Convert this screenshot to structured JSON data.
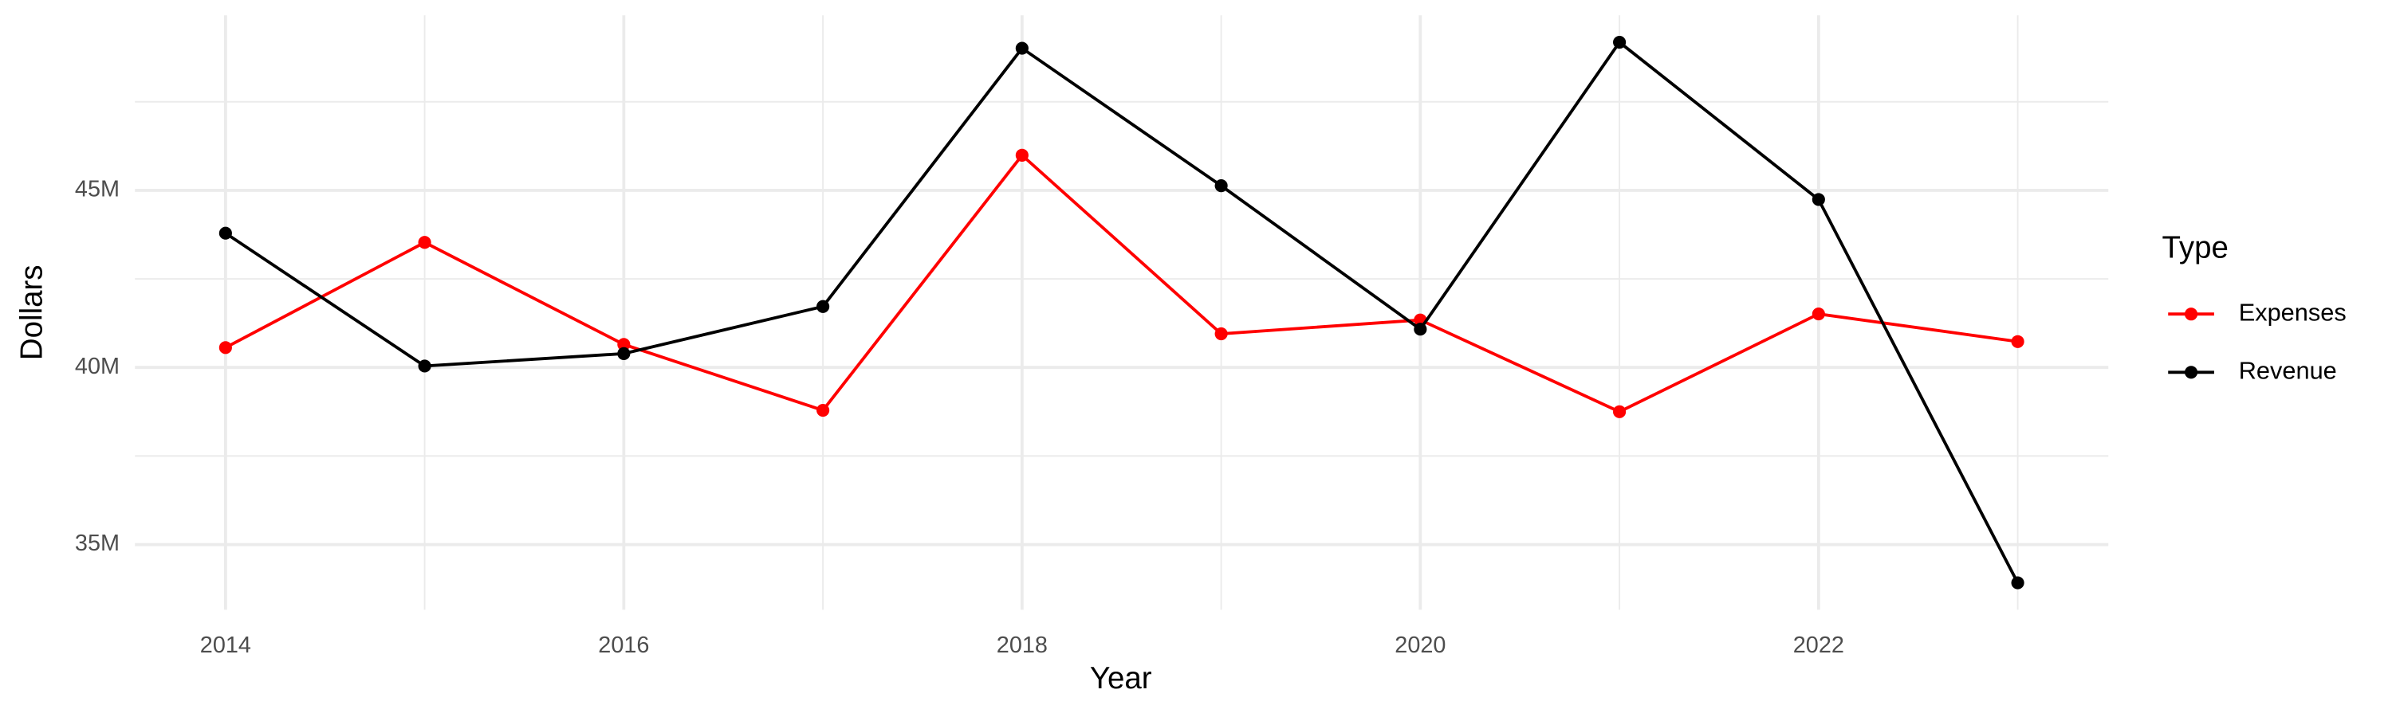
{
  "chart_data": {
    "type": "line",
    "x_label": "Year",
    "y_label": "Dollars",
    "legend_title": "Type",
    "legend_position": "right",
    "grid": true,
    "x": [
      2014,
      2015,
      2016,
      2017,
      2018,
      2019,
      2020,
      2021,
      2022,
      2023
    ],
    "xlim": [
      2013.545,
      2023.455
    ],
    "xticks": [
      2014,
      2016,
      2018,
      2020,
      2022
    ],
    "ylim": [
      33160000,
      49940000
    ],
    "yticks": [
      {
        "value": 35000000,
        "label": "35M"
      },
      {
        "value": 40000000,
        "label": "40M"
      },
      {
        "value": 45000000,
        "label": "45M"
      }
    ],
    "series": [
      {
        "name": "Expenses",
        "color": "#ff0000",
        "values": [
          40560000,
          43530000,
          40650000,
          38790000,
          45990000,
          40950000,
          41340000,
          38750000,
          41510000,
          40730000
        ]
      },
      {
        "name": "Revenue",
        "color": "#000000",
        "values": [
          43790000,
          40040000,
          40390000,
          41720000,
          49010000,
          45130000,
          41080000,
          49180000,
          44740000,
          33920000
        ]
      }
    ]
  }
}
